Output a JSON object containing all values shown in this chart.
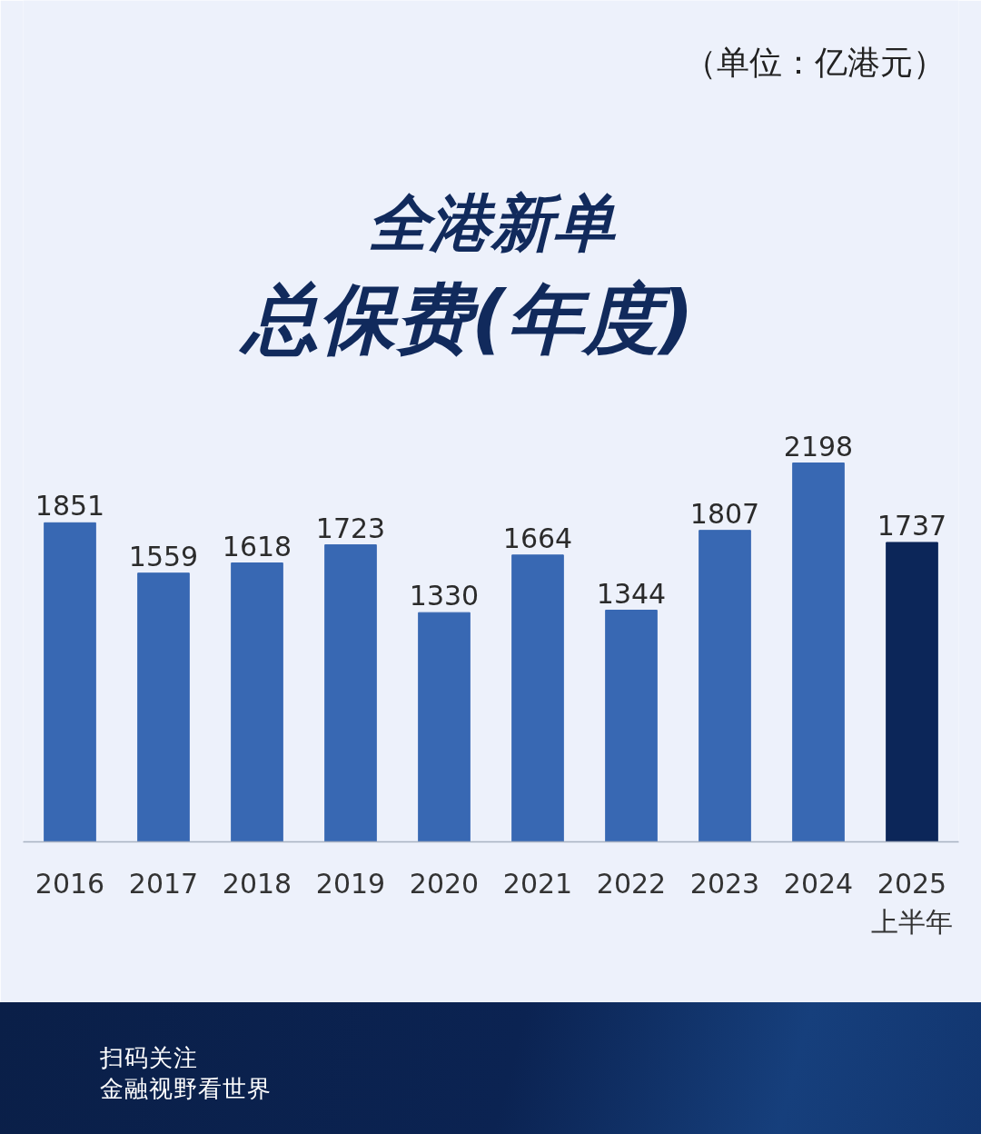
{
  "chart_data": {
    "type": "bar",
    "title": "全港新单",
    "subtitle": "总保费(年度)",
    "categories": [
      "2016",
      "2017",
      "2018",
      "2019",
      "2020",
      "2021",
      "2022",
      "2023",
      "2024",
      "2025\n上半年"
    ],
    "values": [
      1851,
      1559,
      1618,
      1723,
      1330,
      1664,
      1344,
      1807,
      2198,
      1737
    ],
    "colors": [
      "#3868b3",
      "#3868b3",
      "#3868b3",
      "#3868b3",
      "#3868b3",
      "#3868b3",
      "#3868b3",
      "#3868b3",
      "#3868b3",
      "#0c2659"
    ],
    "data_labels": true,
    "grid": false,
    "annotations": [
      "（单位：亿港元）",
      "扫码关注",
      "金融视野看世界"
    ]
  }
}
